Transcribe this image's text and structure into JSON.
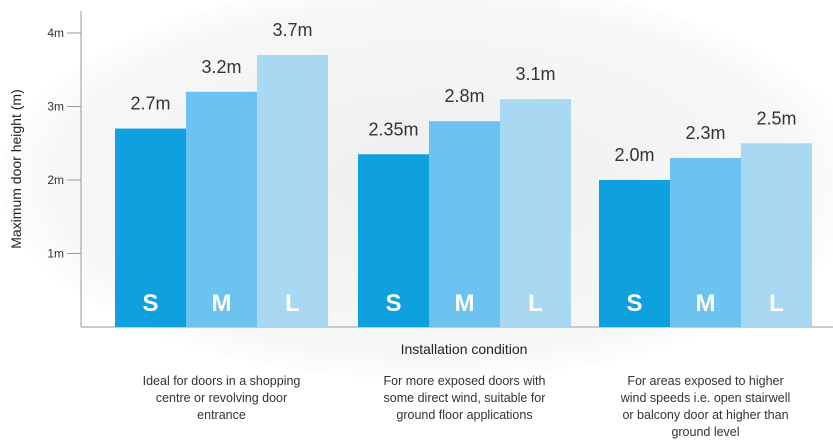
{
  "chart_data": {
    "type": "bar",
    "title": "",
    "xlabel": "Installation condition",
    "ylabel": "Maximum door height (m)",
    "ylim": [
      0,
      4.3
    ],
    "yticks": [
      {
        "value": 1,
        "label": "1m"
      },
      {
        "value": 2,
        "label": "2m"
      },
      {
        "value": 3,
        "label": "3m"
      },
      {
        "value": 4,
        "label": "4m"
      }
    ],
    "grid": false,
    "categories": [
      "Ideal for doors in a shopping centre or revolving door entrance",
      "For more exposed doors with some direct wind, suitable for ground floor applications",
      "For areas exposed to higher wind speeds i.e. open stairwell or balcony door at higher than ground level"
    ],
    "category_lines": [
      [
        "Ideal for doors in a shopping",
        "centre or revolving door",
        "entrance"
      ],
      [
        "For more exposed doors with",
        "some direct wind, suitable for",
        "ground floor applications"
      ],
      [
        "For areas exposed to higher",
        "wind speeds i.e. open stairwell",
        "or balcony door at higher than",
        "ground level"
      ]
    ],
    "series": [
      {
        "name": "S",
        "color": "#0fa0e0",
        "values": [
          2.7,
          2.35,
          2.0
        ],
        "labels": [
          "2.7m",
          "2.35m",
          "2.0m"
        ]
      },
      {
        "name": "M",
        "color": "#6cc3ef",
        "values": [
          3.2,
          2.8,
          2.3
        ],
        "labels": [
          "3.2m",
          "2.8m",
          "2.3m"
        ]
      },
      {
        "name": "L",
        "color": "#a9d8f3",
        "values": [
          3.7,
          3.1,
          2.5
        ],
        "labels": [
          "3.7m",
          "3.1m",
          "2.5m"
        ]
      }
    ]
  }
}
